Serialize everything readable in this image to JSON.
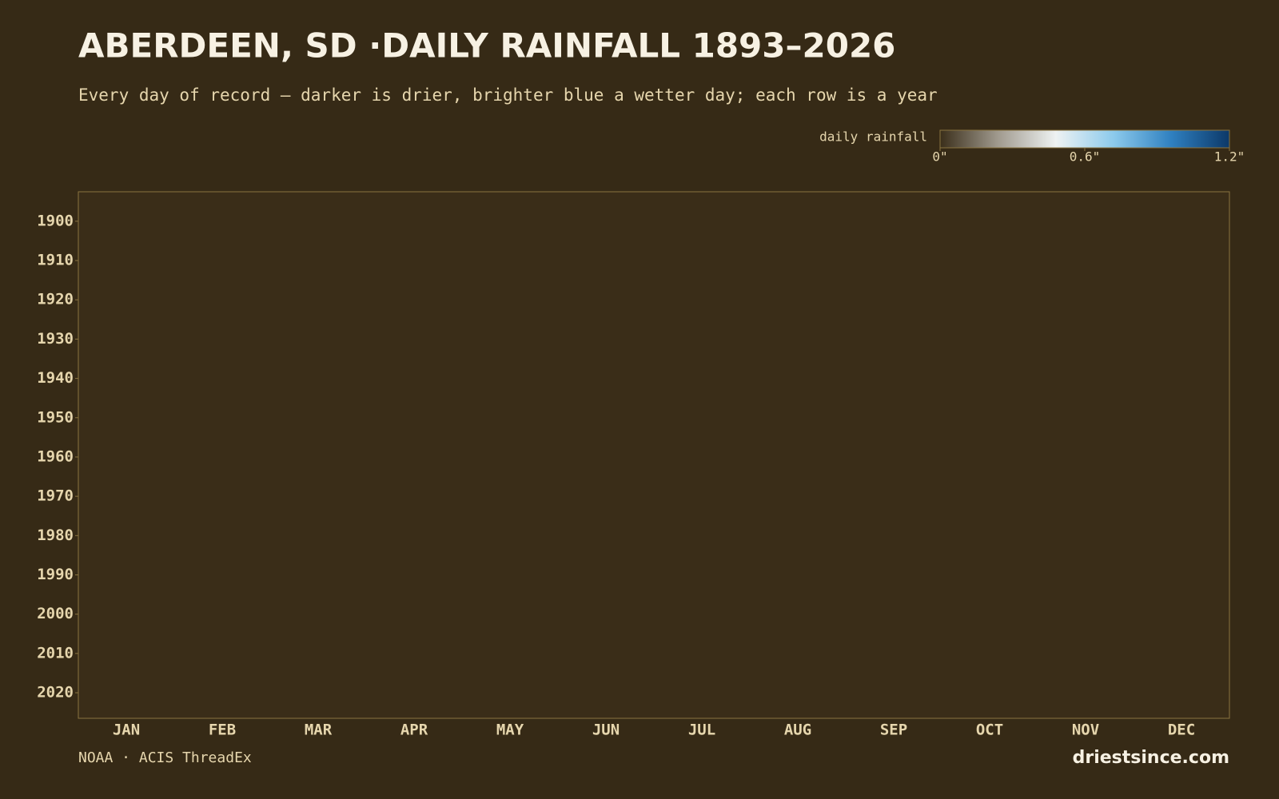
{
  "chart_data": {
    "type": "heatmap",
    "title": "ABERDEEN, SD ·DAILY RAINFALL 1893–2026",
    "subtitle": "Every day of record — darker is drier, brighter blue a wetter day; each row is a year",
    "colorbar": {
      "label": "daily rainfall",
      "lim": [
        0,
        1.2
      ],
      "ticks": [
        {
          "value": 0,
          "label": "0\""
        },
        {
          "value": 0.6,
          "label": "0.6\""
        },
        {
          "value": 1.2,
          "label": "1.2\""
        }
      ],
      "colors": [
        "#3a2e1a",
        "#a09a8e",
        "#eef2f2",
        "#8ccaec",
        "#2f80c0",
        "#0c3868"
      ]
    },
    "categories": [
      "JAN",
      "FEB",
      "MAR",
      "APR",
      "MAY",
      "JUN",
      "JUL",
      "AUG",
      "SEP",
      "OCT",
      "NOV",
      "DEC"
    ],
    "ylim": [
      1893,
      2026
    ],
    "yticks": [
      1900,
      1910,
      1920,
      1930,
      1940,
      1950,
      1960,
      1970,
      1980,
      1990,
      2000,
      2010,
      2020
    ],
    "source": "NOAA · ACIS ThreadEx",
    "brand": "driestsince.com"
  }
}
